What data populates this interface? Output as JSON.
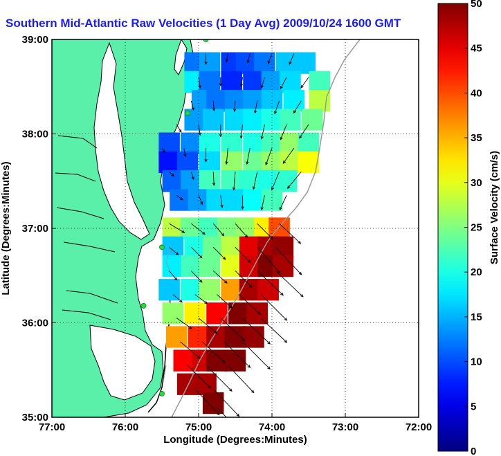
{
  "chart_data": {
    "type": "heatmap",
    "title": "Southern Mid-Atlantic Raw Velocities (1 Day Avg) 2009/10/24 1600 GMT",
    "xlabel": "Longitude (Degrees:Minutes)",
    "ylabel": "Latitude (Degrees:Minutes)",
    "colorbar_label": "Surface Velocity (cm/s)",
    "x_ticks": [
      {
        "value": -77,
        "label": "77:00"
      },
      {
        "value": -76,
        "label": "76:00"
      },
      {
        "value": -75,
        "label": "75:00"
      },
      {
        "value": -74,
        "label": "74:00"
      },
      {
        "value": -73,
        "label": "73:00"
      },
      {
        "value": -72,
        "label": "72:00"
      }
    ],
    "y_ticks": [
      {
        "value": 35,
        "label": "35:00"
      },
      {
        "value": 36,
        "label": "36:00"
      },
      {
        "value": 37,
        "label": "37:00"
      },
      {
        "value": 38,
        "label": "38:00"
      },
      {
        "value": 39,
        "label": "39:00"
      }
    ],
    "xlim": [
      -77,
      -72
    ],
    "ylim": [
      35,
      39
    ],
    "colorbar_range": [
      0,
      50
    ],
    "colorbar_ticks": [
      0,
      5,
      10,
      15,
      20,
      25,
      30,
      35,
      40,
      45,
      50
    ],
    "grid": true,
    "colormap": "jet",
    "colors": {
      "land": "#5af0aa",
      "coastline": "#000000",
      "bathymetry": "#999999",
      "station": "#22dd44",
      "vector": "#000000",
      "title": "#1a1aff"
    },
    "cells": [
      [
        -75.05,
        38.75,
        12
      ],
      [
        -74.85,
        38.75,
        14
      ],
      [
        -74.55,
        38.75,
        9
      ],
      [
        -74.35,
        38.75,
        10
      ],
      [
        -74.1,
        38.75,
        12
      ],
      [
        -73.8,
        38.75,
        16
      ],
      [
        -73.55,
        38.75,
        16
      ],
      [
        -75.05,
        38.55,
        18
      ],
      [
        -74.85,
        38.55,
        12
      ],
      [
        -74.55,
        38.55,
        8
      ],
      [
        -74.25,
        38.55,
        9
      ],
      [
        -74.0,
        38.55,
        14
      ],
      [
        -73.75,
        38.55,
        17
      ],
      [
        -73.35,
        38.55,
        22
      ],
      [
        -74.95,
        38.35,
        14
      ],
      [
        -74.75,
        38.35,
        12
      ],
      [
        -74.5,
        38.35,
        13
      ],
      [
        -74.25,
        38.35,
        14
      ],
      [
        -74.0,
        38.35,
        16
      ],
      [
        -73.7,
        38.35,
        18
      ],
      [
        -73.35,
        38.35,
        28
      ],
      [
        -75.05,
        38.15,
        14
      ],
      [
        -74.8,
        38.15,
        16
      ],
      [
        -74.5,
        38.15,
        17
      ],
      [
        -74.25,
        38.15,
        18
      ],
      [
        -74.0,
        38.15,
        20
      ],
      [
        -73.75,
        38.15,
        22
      ],
      [
        -73.45,
        38.15,
        24
      ],
      [
        -75.4,
        37.9,
        10
      ],
      [
        -75.1,
        37.9,
        13
      ],
      [
        -74.85,
        37.9,
        20
      ],
      [
        -74.55,
        37.9,
        21
      ],
      [
        -74.25,
        37.9,
        20
      ],
      [
        -74.0,
        37.9,
        22
      ],
      [
        -73.75,
        37.9,
        26
      ],
      [
        -73.5,
        37.9,
        22
      ],
      [
        -75.4,
        37.7,
        7
      ],
      [
        -75.15,
        37.7,
        10
      ],
      [
        -74.85,
        37.7,
        17
      ],
      [
        -74.55,
        37.7,
        26
      ],
      [
        -74.25,
        37.7,
        24
      ],
      [
        -74.0,
        37.7,
        26
      ],
      [
        -73.75,
        37.7,
        28
      ],
      [
        -73.5,
        37.7,
        31
      ],
      [
        -75.35,
        37.5,
        11
      ],
      [
        -75.1,
        37.5,
        14
      ],
      [
        -74.85,
        37.5,
        22
      ],
      [
        -74.55,
        37.5,
        22
      ],
      [
        -74.3,
        37.5,
        21
      ],
      [
        -74.05,
        37.5,
        20
      ],
      [
        -73.8,
        37.5,
        21
      ],
      [
        -75.25,
        37.3,
        12
      ],
      [
        -75.0,
        37.3,
        14
      ],
      [
        -74.75,
        37.3,
        17
      ],
      [
        -74.5,
        37.3,
        17
      ],
      [
        -74.25,
        37.3,
        19
      ],
      [
        -74.0,
        37.3,
        22
      ],
      [
        -75.35,
        37.0,
        28
      ],
      [
        -75.1,
        37.0,
        24
      ],
      [
        -74.85,
        37.0,
        22
      ],
      [
        -74.6,
        37.0,
        25
      ],
      [
        -74.35,
        37.0,
        26
      ],
      [
        -74.1,
        37.0,
        32
      ],
      [
        -73.9,
        37.0,
        40
      ],
      [
        -75.35,
        36.8,
        16
      ],
      [
        -75.05,
        36.8,
        20
      ],
      [
        -74.8,
        36.8,
        24
      ],
      [
        -74.55,
        36.8,
        28
      ],
      [
        -74.3,
        36.8,
        45
      ],
      [
        -74.05,
        36.8,
        48
      ],
      [
        -73.85,
        36.8,
        49
      ],
      [
        -75.35,
        36.6,
        18
      ],
      [
        -75.1,
        36.6,
        22
      ],
      [
        -74.85,
        36.6,
        24
      ],
      [
        -74.55,
        36.6,
        30
      ],
      [
        -74.3,
        36.6,
        46
      ],
      [
        -74.05,
        36.6,
        50
      ],
      [
        -73.85,
        36.6,
        48
      ],
      [
        -75.4,
        36.35,
        16
      ],
      [
        -75.1,
        36.35,
        20
      ],
      [
        -74.85,
        36.35,
        26
      ],
      [
        -74.55,
        36.35,
        36
      ],
      [
        -74.3,
        36.35,
        48
      ],
      [
        -74.05,
        36.35,
        46
      ],
      [
        -75.35,
        36.1,
        26
      ],
      [
        -75.05,
        36.1,
        32
      ],
      [
        -74.75,
        36.1,
        44
      ],
      [
        -74.45,
        36.1,
        50
      ],
      [
        -74.2,
        36.1,
        48
      ],
      [
        -75.3,
        35.85,
        36
      ],
      [
        -75.0,
        35.85,
        42
      ],
      [
        -74.75,
        35.85,
        48
      ],
      [
        -74.5,
        35.85,
        50
      ],
      [
        -74.25,
        35.85,
        49
      ],
      [
        -75.2,
        35.6,
        44
      ],
      [
        -74.95,
        35.6,
        46
      ],
      [
        -74.75,
        35.6,
        50
      ],
      [
        -74.5,
        35.6,
        50
      ],
      [
        -75.15,
        35.35,
        48
      ],
      [
        -74.9,
        35.35,
        48
      ],
      [
        -74.8,
        35.15,
        50
      ]
    ],
    "vectors_cm_s": [
      [
        -74.9,
        38.85,
        0,
        -14
      ],
      [
        -74.6,
        38.85,
        -2,
        -11
      ],
      [
        -74.3,
        38.85,
        -3,
        -12
      ],
      [
        -74.0,
        38.85,
        -5,
        -13
      ],
      [
        -73.7,
        38.85,
        -6,
        -14
      ],
      [
        -75.0,
        38.6,
        2,
        -14
      ],
      [
        -74.7,
        38.6,
        0,
        -11
      ],
      [
        -74.4,
        38.6,
        -2,
        -12
      ],
      [
        -74.1,
        38.6,
        -4,
        -14
      ],
      [
        -73.8,
        38.6,
        -8,
        -15
      ],
      [
        -73.5,
        38.6,
        -10,
        -14
      ],
      [
        -75.1,
        38.35,
        3,
        -12
      ],
      [
        -74.8,
        38.35,
        1,
        -13
      ],
      [
        -74.5,
        38.35,
        -1,
        -14
      ],
      [
        -74.2,
        38.35,
        -3,
        -16
      ],
      [
        -73.9,
        38.35,
        -6,
        -17
      ],
      [
        -73.6,
        38.35,
        -10,
        -16
      ],
      [
        -75.3,
        38.1,
        6,
        -10
      ],
      [
        -75.0,
        38.1,
        2,
        -14
      ],
      [
        -74.7,
        38.1,
        0,
        -16
      ],
      [
        -74.4,
        38.1,
        -2,
        -18
      ],
      [
        -74.1,
        38.1,
        -4,
        -19
      ],
      [
        -73.8,
        38.1,
        -8,
        -20
      ],
      [
        -73.5,
        38.1,
        -12,
        -18
      ],
      [
        -75.5,
        37.85,
        4,
        -6
      ],
      [
        -75.2,
        37.85,
        2,
        -11
      ],
      [
        -74.9,
        37.85,
        0,
        -18
      ],
      [
        -74.6,
        37.85,
        -2,
        -21
      ],
      [
        -74.3,
        37.85,
        -4,
        -21
      ],
      [
        -74.0,
        37.85,
        -8,
        -22
      ],
      [
        -73.7,
        37.85,
        -14,
        -20
      ],
      [
        -75.4,
        37.6,
        6,
        -6
      ],
      [
        -75.1,
        37.6,
        3,
        -10
      ],
      [
        -74.8,
        37.6,
        1,
        -18
      ],
      [
        -74.5,
        37.6,
        -2,
        -24
      ],
      [
        -74.2,
        37.6,
        -5,
        -23
      ],
      [
        -73.9,
        37.6,
        -10,
        -24
      ],
      [
        -73.6,
        37.6,
        -18,
        -22
      ],
      [
        -75.3,
        37.35,
        8,
        -6
      ],
      [
        -75.0,
        37.35,
        5,
        -12
      ],
      [
        -74.7,
        37.35,
        2,
        -16
      ],
      [
        -74.4,
        37.35,
        0,
        -18
      ],
      [
        -74.1,
        37.35,
        -4,
        -19
      ],
      [
        -73.8,
        37.35,
        -9,
        -19
      ],
      [
        -75.4,
        37.05,
        20,
        -12
      ],
      [
        -75.1,
        37.05,
        18,
        -14
      ],
      [
        -74.8,
        37.05,
        14,
        -16
      ],
      [
        -74.5,
        37.05,
        16,
        -18
      ],
      [
        -74.2,
        37.05,
        20,
        -20
      ],
      [
        -73.9,
        37.05,
        28,
        -26
      ],
      [
        -75.4,
        36.8,
        12,
        -10
      ],
      [
        -75.1,
        36.8,
        14,
        -14
      ],
      [
        -74.8,
        36.8,
        16,
        -16
      ],
      [
        -74.5,
        36.8,
        20,
        -20
      ],
      [
        -74.2,
        36.8,
        30,
        -34
      ],
      [
        -73.95,
        36.8,
        34,
        -36
      ],
      [
        -75.4,
        36.55,
        10,
        -12
      ],
      [
        -75.1,
        36.55,
        14,
        -15
      ],
      [
        -74.8,
        36.55,
        18,
        -16
      ],
      [
        -74.5,
        36.55,
        22,
        -22
      ],
      [
        -74.2,
        36.55,
        34,
        -32
      ],
      [
        -73.95,
        36.55,
        36,
        -34
      ],
      [
        -75.35,
        36.3,
        12,
        -10
      ],
      [
        -75.05,
        36.3,
        16,
        -12
      ],
      [
        -74.75,
        36.3,
        20,
        -18
      ],
      [
        -74.45,
        36.3,
        28,
        -26
      ],
      [
        -74.15,
        36.3,
        34,
        -34
      ],
      [
        -75.3,
        36.05,
        20,
        -14
      ],
      [
        -75.0,
        36.05,
        24,
        -20
      ],
      [
        -74.7,
        36.05,
        32,
        -30
      ],
      [
        -74.4,
        36.05,
        36,
        -34
      ],
      [
        -74.15,
        36.05,
        34,
        -32
      ],
      [
        -75.25,
        35.8,
        26,
        -22
      ],
      [
        -74.95,
        35.8,
        30,
        -28
      ],
      [
        -74.65,
        35.8,
        34,
        -34
      ],
      [
        -74.4,
        35.8,
        36,
        -36
      ],
      [
        -75.15,
        35.55,
        30,
        -30
      ],
      [
        -74.9,
        35.55,
        34,
        -34
      ],
      [
        -74.6,
        35.55,
        34,
        -36
      ],
      [
        -75.05,
        35.3,
        32,
        -34
      ],
      [
        -74.8,
        35.3,
        34,
        -36
      ],
      [
        -74.75,
        35.1,
        30,
        -30
      ]
    ],
    "stations": [
      {
        "lon": -74.9,
        "lat": 39.0
      },
      {
        "lon": -75.15,
        "lat": 38.22
      },
      {
        "lon": -75.5,
        "lat": 36.8
      },
      {
        "lon": -75.75,
        "lat": 36.18
      },
      {
        "lon": -75.5,
        "lat": 35.25
      }
    ]
  }
}
